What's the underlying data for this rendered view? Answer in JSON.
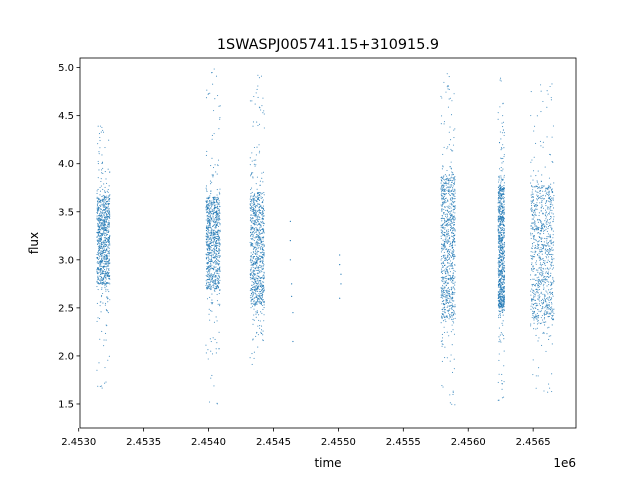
{
  "chart_data": {
    "type": "scatter",
    "title": "1SWASPJ005741.15+310915.9",
    "xlabel": "time",
    "ylabel": "flux",
    "x_offset_label": "1e6",
    "xlim": [
      2.45301,
      2.45683
    ],
    "ylim": [
      1.25,
      5.1
    ],
    "x_ticks": [
      2.453,
      2.4535,
      2.454,
      2.4545,
      2.455,
      2.4555,
      2.456,
      2.4565
    ],
    "x_tick_labels": [
      "2.4530",
      "2.4535",
      "2.4540",
      "2.4545",
      "2.4550",
      "2.4555",
      "2.4560",
      "2.4565"
    ],
    "y_ticks": [
      1.5,
      2.0,
      2.5,
      3.0,
      3.5,
      4.0,
      4.5,
      5.0
    ],
    "y_tick_labels": [
      "1.5",
      "2.0",
      "2.5",
      "3.0",
      "3.5",
      "4.0",
      "4.5",
      "5.0"
    ],
    "grid": false,
    "marker_color": "#1f77b4",
    "series": [
      {
        "clusters": [
          {
            "x_range": [
              2.45314,
              2.45324
            ],
            "core_range": [
              2.75,
              3.65
            ],
            "tail_range": [
              1.65,
              4.5
            ]
          },
          {
            "x_range": [
              2.45398,
              2.45409
            ],
            "core_range": [
              2.7,
              3.65
            ],
            "tail_range": [
              1.5,
              5.0
            ]
          },
          {
            "x_range": [
              2.45432,
              2.45443
            ],
            "core_range": [
              2.55,
              3.7
            ],
            "tail_range": [
              1.9,
              4.95
            ]
          },
          {
            "x_range": [
              2.45579,
              2.4559
            ],
            "core_range": [
              2.4,
              3.85
            ],
            "tail_range": [
              1.45,
              4.98
            ]
          },
          {
            "x_range": [
              2.45623,
              2.45628
            ],
            "core_range": [
              2.5,
              3.75
            ],
            "tail_range": [
              1.45,
              4.9
            ]
          },
          {
            "x_range": [
              2.45648,
              2.45666
            ],
            "core_range": [
              2.4,
              3.75
            ],
            "tail_range": [
              1.5,
              4.85
            ]
          }
        ],
        "sparse_points": [
          [
            2.45463,
            3.4
          ],
          [
            2.45463,
            3.2
          ],
          [
            2.45463,
            3.0
          ],
          [
            2.45464,
            2.75
          ],
          [
            2.45464,
            2.62
          ],
          [
            2.45465,
            2.45
          ],
          [
            2.45465,
            2.15
          ],
          [
            2.45501,
            3.05
          ],
          [
            2.45501,
            2.95
          ],
          [
            2.45502,
            2.85
          ],
          [
            2.45502,
            2.75
          ],
          [
            2.45501,
            2.6
          ]
        ]
      }
    ]
  }
}
